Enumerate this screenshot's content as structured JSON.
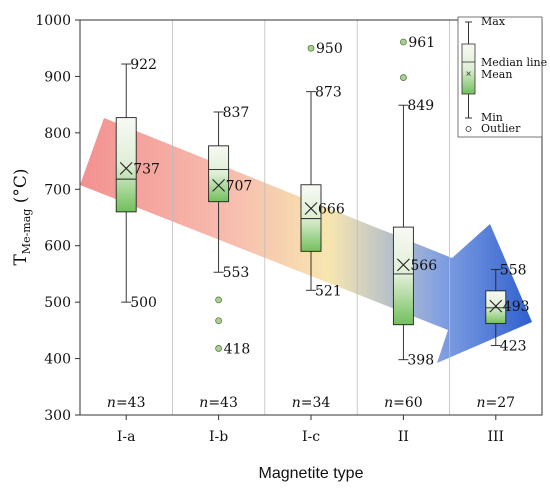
{
  "chart_data": {
    "type": "box",
    "xlabel": "Magnetite type",
    "ylabel_main": "T",
    "ylabel_sub": "Me-mag",
    "ylabel_unit": " (°C)",
    "ylim": [
      300,
      1000
    ],
    "yticks": [
      300,
      400,
      500,
      600,
      700,
      800,
      900,
      1000
    ],
    "grid": {
      "vertical": true,
      "horizontal": false
    },
    "categories": [
      "I-a",
      "I-b",
      "I-c",
      "II",
      "III"
    ],
    "boxes": [
      {
        "category": "I-a",
        "min": 500,
        "q1": 660,
        "median": 718,
        "q3": 827,
        "max": 922,
        "mean": 737,
        "outliers": [],
        "n": "43",
        "label_max": "922",
        "label_min": "500",
        "label_mean": "737",
        "label_outlier_min": ""
      },
      {
        "category": "I-b",
        "min": 553,
        "q1": 678,
        "median": 735,
        "q3": 777,
        "max": 837,
        "mean": 707,
        "outliers": [
          418,
          467,
          504
        ],
        "n": "43",
        "label_max": "837",
        "label_min": "553",
        "label_mean": "707",
        "label_outlier_min": "418"
      },
      {
        "category": "I-c",
        "min": 521,
        "q1": 590,
        "median": 648,
        "q3": 708,
        "max": 873,
        "mean": 666,
        "outliers": [
          950
        ],
        "n": "34",
        "label_max": "873",
        "label_min": "521",
        "label_mean": "666",
        "label_outlier_max": "950"
      },
      {
        "category": "II",
        "min": 398,
        "q1": 460,
        "median": 550,
        "q3": 633,
        "max": 849,
        "mean": 566,
        "outliers": [
          898,
          961
        ],
        "n": "60",
        "label_max": "849",
        "label_min": "398",
        "label_mean": "566",
        "label_outlier_max": "961"
      },
      {
        "category": "III",
        "min": 423,
        "q1": 462,
        "median": 490,
        "q3": 520,
        "max": 558,
        "mean": 493,
        "outliers": [],
        "n": "27",
        "label_max": "558",
        "label_min": "423",
        "label_mean": "493"
      }
    ],
    "n_prefix": "n",
    "legend": {
      "position": "top-right",
      "max": "Max",
      "median": "Median line",
      "mean": "Mean",
      "min": "Min",
      "outlier": "Outlier"
    },
    "colors": {
      "box_top": "#f4f8f0",
      "box_bottom": "#6fbf5a",
      "outlier_fill": "#a9d28f",
      "arrow_start": "#f28b8b",
      "arrow_mid": "#f6e3a6",
      "arrow_end": "#2e5fcf"
    }
  }
}
